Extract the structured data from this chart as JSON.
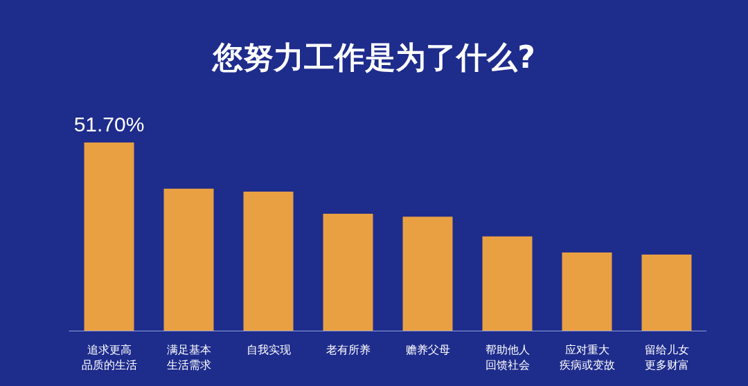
{
  "chart_data": {
    "type": "bar",
    "title": "您努力工作是为了什么?",
    "categories": [
      "追求更高品质的生活",
      "满足基本生活需求",
      "自我实现",
      "老有所养",
      "赡养父母",
      "帮助他人回馈社会",
      "应对重大疾病或变故",
      "留给儿女更多财富"
    ],
    "values": [
      51.7,
      39.0,
      38.2,
      32.1,
      31.3,
      25.9,
      21.5,
      20.9
    ],
    "value_labels": [
      "51.70%",
      null,
      null,
      null,
      null,
      null,
      null,
      null
    ],
    "color": "#e9a043"
  }
}
